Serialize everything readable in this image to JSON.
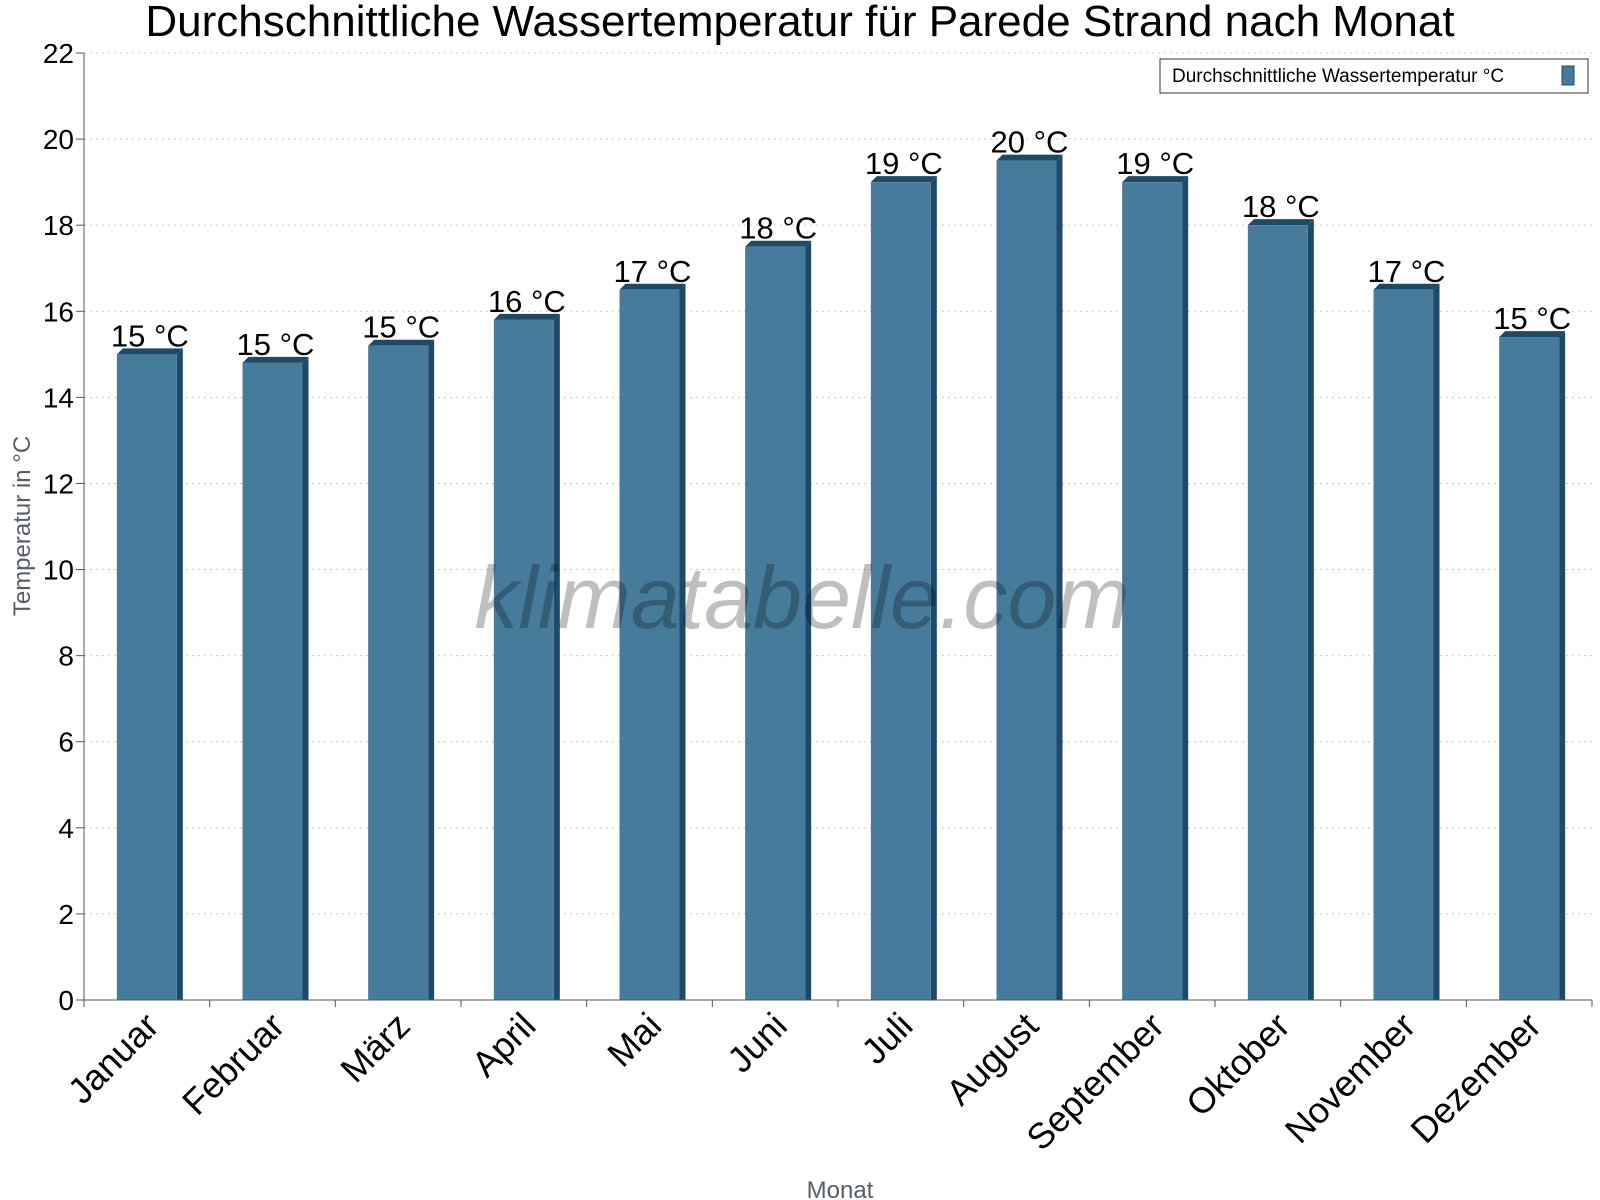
{
  "chart_data": {
    "type": "bar",
    "title": "Durchschnittliche Wassertemperatur für Parede Strand nach Monat",
    "xlabel": "Monat",
    "ylabel": "Temperatur in °C",
    "categories": [
      "Januar",
      "Februar",
      "März",
      "April",
      "Mai",
      "Juni",
      "Juli",
      "August",
      "September",
      "Oktober",
      "November",
      "Dezember"
    ],
    "series": [
      {
        "name": "Durchschnittliche Wassertemperatur °C",
        "values": [
          15.0,
          14.8,
          15.2,
          15.8,
          16.5,
          17.5,
          19.0,
          19.5,
          19.0,
          18.0,
          16.5,
          15.4
        ],
        "labels": [
          "15 °C",
          "15 °C",
          "15 °C",
          "16 °C",
          "17 °C",
          "18 °C",
          "19 °C",
          "20 °C",
          "19 °C",
          "18 °C",
          "17 °C",
          "15 °C"
        ],
        "color": "#467b9c",
        "side_color": "#1e4a6a"
      }
    ],
    "ylim": [
      0,
      22
    ],
    "ytick_step": 2,
    "grid": "horizontal dotted",
    "legend_position": "top-right"
  },
  "watermark": "klimatabelle.com"
}
